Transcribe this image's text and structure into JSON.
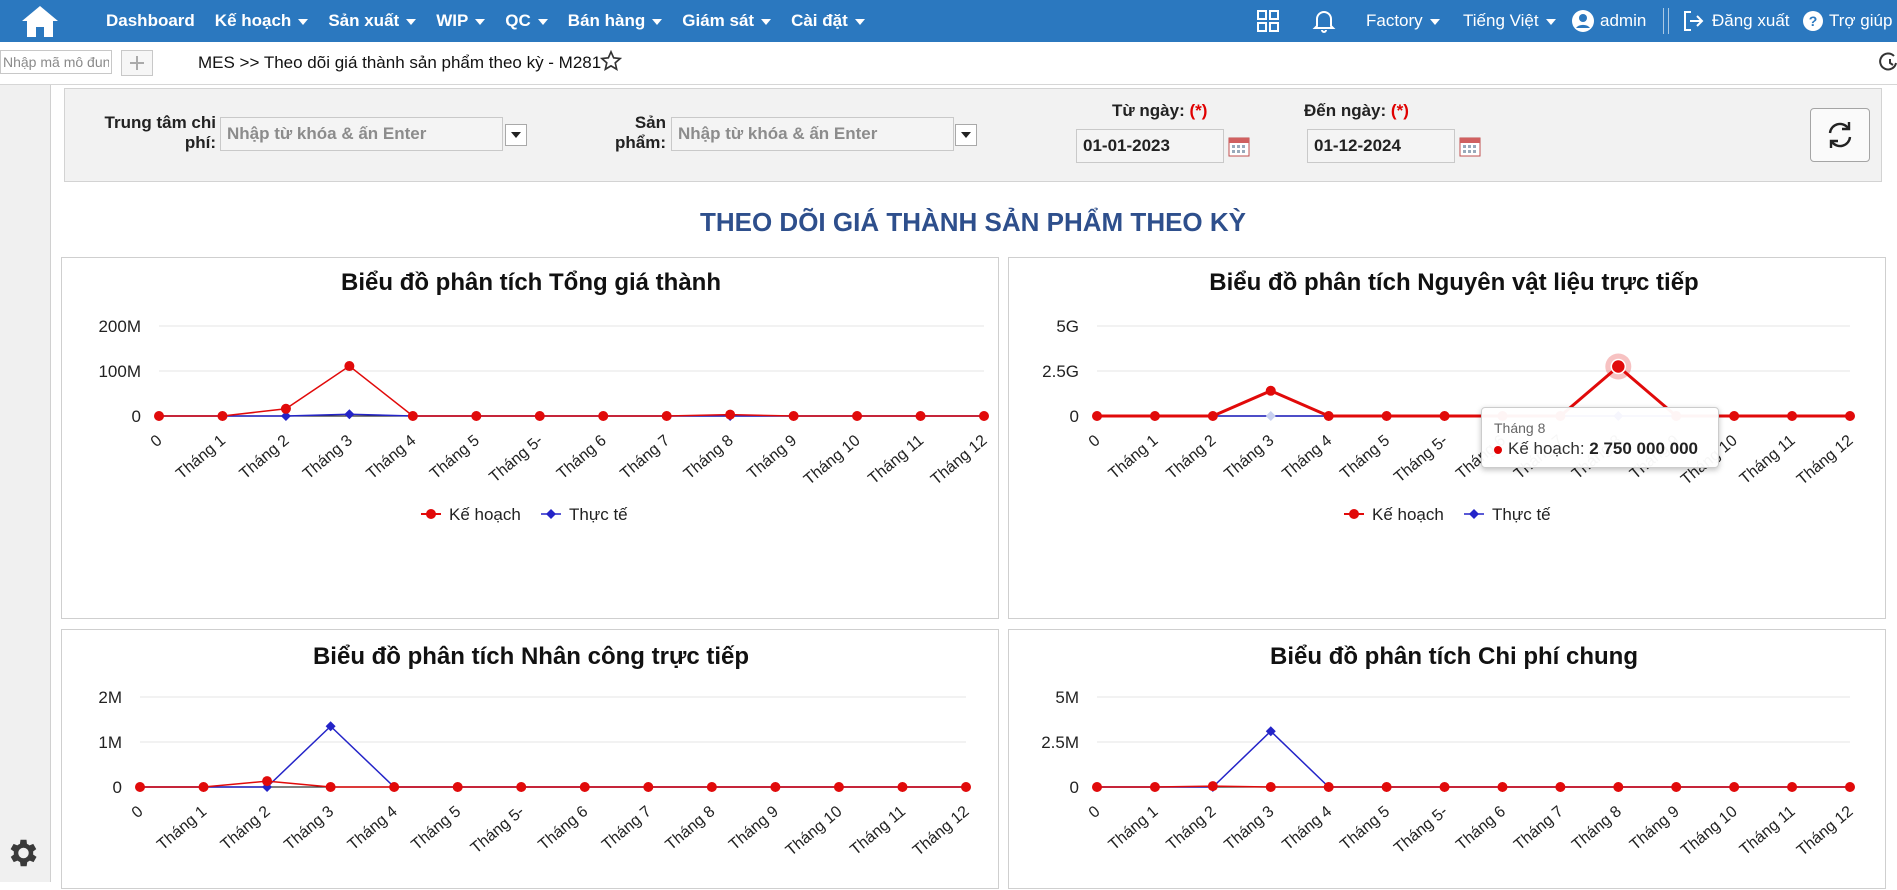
{
  "nav": {
    "items": [
      {
        "label": "Dashboard",
        "caret": false
      },
      {
        "label": "Kế hoạch",
        "caret": true
      },
      {
        "label": "Sản xuất",
        "caret": true
      },
      {
        "label": "WIP",
        "caret": true
      },
      {
        "label": "QC",
        "caret": true
      },
      {
        "label": "Bán hàng",
        "caret": true
      },
      {
        "label": "Giám sát",
        "caret": true
      },
      {
        "label": "Cài đặt",
        "caret": true
      }
    ],
    "factory": "Factory",
    "language": "Tiếng Việt",
    "user": "admin",
    "logout": "Đăng xuất",
    "help": "Trợ giúp"
  },
  "toolbar": {
    "module_placeholder": "Nhập mã mô đun",
    "breadcrumb": "MES >> Theo dõi giá thành sản phẩm theo kỳ - M281"
  },
  "filter": {
    "cost_center_label": "Trung tâm chi phí:",
    "cost_center_placeholder": "Nhập từ khóa & ấn Enter",
    "product_label": "Sản phẩm:",
    "product_placeholder": "Nhập từ khóa & ấn Enter",
    "from_label": "Từ ngày:",
    "from_value": "01-01-2023",
    "to_label": "Đến ngày:",
    "to_value": "01-12-2024",
    "required_mark": "(*)"
  },
  "page_title": "THEO DÕI GIÁ THÀNH SẢN PHẨM THEO KỲ",
  "colors": {
    "plan": "#e10a0a",
    "actual": "#2424c8",
    "title": "#2e4f8c",
    "topbar": "#2b78bf"
  },
  "tooltip": {
    "x_label": "Tháng 8",
    "series": "Kế hoạch",
    "value": "2 750 000 000"
  },
  "chart_data": [
    {
      "type": "line",
      "title": "Biểu đồ phân tích Tổng giá thành",
      "categories": [
        "0",
        "Tháng 1",
        "Tháng 2",
        "Tháng 3",
        "Tháng 4",
        "Tháng 5",
        "Tháng 5-",
        "Tháng 6",
        "Tháng 7",
        "Tháng 8",
        "Tháng 9",
        "Tháng 10",
        "Tháng 11",
        "Tháng 12"
      ],
      "yticks": [
        "0",
        "100M",
        "200M"
      ],
      "ylim": [
        0,
        200000000
      ],
      "legend": "bottom",
      "grid": true,
      "series": [
        {
          "name": "Kế hoạch",
          "values": [
            0,
            0,
            16000000,
            111000000,
            0,
            0,
            0,
            0,
            0,
            3000000,
            0,
            0,
            0,
            0
          ]
        },
        {
          "name": "Thực tế",
          "values": [
            0,
            0,
            0,
            4000000,
            0,
            0,
            0,
            0,
            0,
            0,
            0,
            0,
            0,
            0
          ]
        }
      ]
    },
    {
      "type": "line",
      "title": "Biểu đồ phân tích Nguyên vật liệu trực tiếp",
      "categories": [
        "0",
        "Tháng 1",
        "Tháng 2",
        "Tháng 3",
        "Tháng 4",
        "Tháng 5",
        "Tháng 5-",
        "Tháng 6",
        "Tháng 7",
        "Tháng 8",
        "Tháng 9",
        "Tháng 10",
        "Tháng 11",
        "Tháng 12"
      ],
      "yticks": [
        "0",
        "2.5G",
        "5G"
      ],
      "ylim": [
        0,
        5000000000
      ],
      "legend": "bottom",
      "grid": true,
      "series": [
        {
          "name": "Kế hoạch",
          "values": [
            0,
            0,
            0,
            1400000000,
            0,
            0,
            0,
            0,
            0,
            2750000000,
            0,
            0,
            0,
            0
          ]
        },
        {
          "name": "Thực tế",
          "values": [
            0,
            0,
            0,
            0,
            0,
            0,
            0,
            0,
            0,
            0,
            0,
            0,
            0,
            0
          ]
        }
      ]
    },
    {
      "type": "line",
      "title": "Biểu đồ phân tích Nhân công trực tiếp",
      "categories": [
        "0",
        "Tháng 1",
        "Tháng 2",
        "Tháng 3",
        "Tháng 4",
        "Tháng 5",
        "Tháng 5-",
        "Tháng 6",
        "Tháng 7",
        "Tháng 8",
        "Tháng 9",
        "Tháng 10",
        "Tháng 11",
        "Tháng 12"
      ],
      "yticks": [
        "0",
        "1M",
        "2M"
      ],
      "ylim": [
        0,
        2000000
      ],
      "legend": "bottom",
      "grid": true,
      "series": [
        {
          "name": "Kế hoạch",
          "values": [
            0,
            0,
            130000,
            0,
            0,
            0,
            0,
            0,
            0,
            0,
            0,
            0,
            0,
            0
          ]
        },
        {
          "name": "Thực tế",
          "values": [
            0,
            0,
            0,
            1350000,
            0,
            0,
            0,
            0,
            0,
            0,
            0,
            0,
            0,
            0
          ]
        }
      ]
    },
    {
      "type": "line",
      "title": "Biểu đồ phân tích Chi phí chung",
      "categories": [
        "0",
        "Tháng 1",
        "Tháng 2",
        "Tháng 3",
        "Tháng 4",
        "Tháng 5",
        "Tháng 5-",
        "Tháng 6",
        "Tháng 7",
        "Tháng 8",
        "Tháng 9",
        "Tháng 10",
        "Tháng 11",
        "Tháng 12"
      ],
      "yticks": [
        "0",
        "2.5M",
        "5M"
      ],
      "ylim": [
        0,
        5000000
      ],
      "legend": "bottom",
      "grid": true,
      "series": [
        {
          "name": "Kế hoạch",
          "values": [
            0,
            0,
            50000,
            0,
            0,
            0,
            0,
            0,
            0,
            0,
            0,
            0,
            0,
            0
          ]
        },
        {
          "name": "Thực tế",
          "values": [
            0,
            0,
            0,
            3100000,
            0,
            0,
            0,
            0,
            0,
            0,
            0,
            0,
            0,
            0
          ]
        }
      ]
    }
  ]
}
